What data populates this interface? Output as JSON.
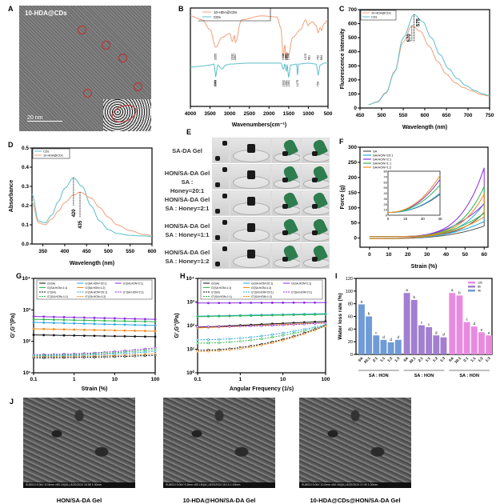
{
  "panels": {
    "A": {
      "label": "A",
      "title": "10-HDA@CDs",
      "scale_bar": "20 nm"
    },
    "E": {
      "label": "E",
      "rows": [
        {
          "line1": "SA-DA Gel",
          "line2": ""
        },
        {
          "line1": "HON/SA-DA Gel",
          "line2": "SA : Honey=20:1"
        },
        {
          "line1": "HON/SA-DA Gel",
          "line2": "SA : Honey=2:1"
        },
        {
          "line1": "HON/SA-DA Gel",
          "line2": "SA : Honey=1:1"
        },
        {
          "line1": "HON/SA-DA Gel",
          "line2": "SA : Honey=1:2"
        }
      ]
    },
    "J": {
      "label": "J",
      "images": [
        {
          "caption": "HON/SA-DA Gel",
          "info": "SU8010 5.0kV 10.6mm x50 LM(UL) 8/20/2024 15:58   1.00mm"
        },
        {
          "caption": "10-HDA@HON/SA-DA Gel",
          "info": "SU8010 5.0kV 9.2mm x50 LM(UL) 8/20/2024 16:10   1.00mm"
        },
        {
          "caption": "10-HDA@CDs@HON/SA-DA Gel",
          "info": "SU8010 5.0kV 10.0mm x50 LM(UL) 8/20/2024 17:40   1.00mm"
        }
      ]
    }
  },
  "colors": {
    "cds": "#5bc0c8",
    "hda": "#f0a07a",
    "sa": "#555555",
    "s20": "#2aa7e0",
    "s21": "#8a2be2",
    "s11": "#2db84d",
    "s12": "#f08a1c",
    "b4": "#6f9bd6",
    "b8": "#a27fd0",
    "b12": "#e88be0"
  },
  "chart_data": [
    {
      "id": "B",
      "type": "line",
      "title": "",
      "xlabel": "Wavenumbers(cm⁻¹)",
      "ylabel": "",
      "xlim": [
        4000,
        500
      ],
      "xticks": [
        4000,
        3500,
        3000,
        2500,
        2000,
        1500,
        1000,
        500
      ],
      "legend": [
        "10-HDA@CDs",
        "CDs"
      ],
      "legend_position": "top-left",
      "peaks_hda": [
        "3355",
        "2932",
        "2857",
        "1638",
        "1567",
        "1552",
        "1504",
        "1070",
        "981",
        "752",
        "664"
      ],
      "peaks_cds": [
        "3365",
        "3363",
        "1632",
        "1561",
        "1501",
        "1275",
        "750"
      ],
      "series": [
        {
          "name": "10-HDA@CDs",
          "x": [
            4000,
            3700,
            3500,
            3355,
            3200,
            3000,
            2932,
            2880,
            2857,
            2700,
            2200,
            1800,
            1700,
            1638,
            1600,
            1567,
            1552,
            1504,
            1400,
            1200,
            1070,
            1000,
            981,
            900,
            800,
            752,
            700,
            664,
            600,
            500
          ],
          "y": [
            0.92,
            0.88,
            0.78,
            0.6,
            0.7,
            0.74,
            0.66,
            0.72,
            0.65,
            0.88,
            0.92,
            0.91,
            0.8,
            0.5,
            0.62,
            0.48,
            0.55,
            0.52,
            0.7,
            0.78,
            0.88,
            0.82,
            0.84,
            0.86,
            0.82,
            0.75,
            0.8,
            0.77,
            0.84,
            0.88
          ]
        },
        {
          "name": "CDs",
          "x": [
            4000,
            3700,
            3500,
            3400,
            3365,
            3363,
            3300,
            3200,
            3100,
            3000,
            2500,
            2000,
            1700,
            1632,
            1600,
            1561,
            1540,
            1501,
            1450,
            1300,
            1275,
            1250,
            1000,
            800,
            750,
            700,
            600,
            500
          ],
          "y": [
            0.4,
            0.41,
            0.42,
            0.43,
            0.34,
            0.3,
            0.42,
            0.38,
            0.42,
            0.43,
            0.44,
            0.44,
            0.44,
            0.38,
            0.43,
            0.36,
            0.42,
            0.3,
            0.42,
            0.43,
            0.32,
            0.43,
            0.44,
            0.43,
            0.32,
            0.42,
            0.44,
            0.44
          ]
        }
      ]
    },
    {
      "id": "C",
      "type": "line",
      "title": "",
      "xlabel": "Wavelength (nm)",
      "ylabel": "Fluorescence intensity",
      "xlim": [
        450,
        750
      ],
      "ylim": [
        0,
        700
      ],
      "xticks": [
        450,
        500,
        550,
        600,
        650,
        700,
        750
      ],
      "yticks": [
        0,
        100,
        200,
        300,
        400,
        500,
        600,
        700
      ],
      "legend": [
        "10-HDA@CDs",
        "CDs"
      ],
      "legend_position": "top-left",
      "annotations": [
        "570",
        "575"
      ],
      "series": [
        {
          "name": "10-HDA@CDs",
          "x": [
            470,
            490,
            510,
            530,
            550,
            570,
            590,
            610,
            630,
            650,
            670,
            690,
            710,
            730,
            750
          ],
          "y": [
            25,
            45,
            110,
            260,
            470,
            585,
            545,
            440,
            330,
            240,
            180,
            145,
            120,
            95,
            85
          ]
        },
        {
          "name": "CDs",
          "x": [
            470,
            490,
            510,
            530,
            550,
            575,
            595,
            615,
            635,
            655,
            675,
            695,
            715,
            735,
            750
          ],
          "y": [
            25,
            42,
            105,
            255,
            500,
            665,
            615,
            500,
            380,
            280,
            210,
            160,
            125,
            100,
            88
          ]
        }
      ]
    },
    {
      "id": "D",
      "type": "line",
      "title": "",
      "xlabel": "Wavelength (nm)",
      "ylabel": "Absorbance",
      "xlim": [
        325,
        600
      ],
      "ylim": [
        0,
        0.5
      ],
      "xticks": [
        350,
        400,
        450,
        500,
        550,
        600
      ],
      "yticks": [
        0.0,
        0.1,
        0.2,
        0.3,
        0.4,
        0.5
      ],
      "legend": [
        "CDs",
        "10-HDA@CDs"
      ],
      "legend_position": "top-left",
      "annotations": [
        "420",
        "435"
      ],
      "series": [
        {
          "name": "CDs",
          "x": [
            325,
            340,
            355,
            370,
            385,
            400,
            420,
            440,
            460,
            480,
            500,
            520,
            550,
            580,
            600
          ],
          "y": [
            0.26,
            0.12,
            0.11,
            0.15,
            0.22,
            0.29,
            0.345,
            0.3,
            0.2,
            0.12,
            0.075,
            0.055,
            0.045,
            0.042,
            0.04
          ]
        },
        {
          "name": "10-HDA@CDs",
          "x": [
            325,
            340,
            355,
            370,
            385,
            400,
            420,
            435,
            460,
            480,
            500,
            520,
            550,
            580,
            600
          ],
          "y": [
            0.22,
            0.11,
            0.1,
            0.13,
            0.17,
            0.215,
            0.255,
            0.27,
            0.24,
            0.19,
            0.14,
            0.1,
            0.07,
            0.05,
            0.045
          ]
        }
      ]
    },
    {
      "id": "F",
      "type": "line",
      "title": "",
      "xlabel": "Strain (%)",
      "ylabel": "Force (g)",
      "xlim": [
        -5,
        62
      ],
      "ylim": [
        -30,
        300
      ],
      "xticks": [
        0,
        10,
        20,
        30,
        40,
        50,
        60
      ],
      "yticks": [
        0,
        50,
        100,
        150,
        200,
        250,
        300
      ],
      "legend": [
        "SA",
        "SA/HON=20:1",
        "SA/HON=2:1",
        "SA/HON=1:1",
        "SA/HON=1:2"
      ],
      "legend_position": "top-left",
      "inset": {
        "xlim": [
          0,
          45
        ],
        "ylim": [
          0,
          80
        ],
        "xticks": [
          0,
          15,
          30,
          45
        ],
        "yticks": [
          0,
          10,
          20,
          30,
          40,
          50,
          60,
          70,
          80
        ]
      },
      "series": [
        {
          "name": "SA",
          "peak": 85
        },
        {
          "name": "SA/HON=20:1",
          "peak": 115
        },
        {
          "name": "SA/HON=2:1",
          "peak": 232
        },
        {
          "name": "SA/HON=1:1",
          "peak": 170
        },
        {
          "name": "SA/HON=1:2",
          "peak": 145
        }
      ]
    },
    {
      "id": "G",
      "type": "line",
      "title": "",
      "xlabel": "Strain (%)",
      "ylabel": "G',G''(Pa)",
      "xscale": "log",
      "yscale": "log",
      "xlim": [
        0.1,
        100
      ],
      "ylim": [
        10,
        10000
      ],
      "xticks": [
        "0.1",
        "1",
        "10",
        "100"
      ],
      "yticks": [
        "10¹",
        "10²",
        "10³",
        "10⁴"
      ],
      "legend": [
        "G'(SA)",
        "G'(SA:HON=20:1)",
        "G'(SA:HON=2:1)",
        "G'(SA:HON=1:1)",
        "G'(SA:HON=1:2)",
        "G''(SA)",
        "G''(SA:HON=20:1)",
        "G''(SA:HON=2:1)",
        "G''(SA:HON=1:1)",
        "G''(SA:HON=1:2)"
      ],
      "legend_position": "top",
      "series": [
        {
          "name": "G'(SA:HON=2:1)",
          "start": 620,
          "end": 500
        },
        {
          "name": "G'(SA:HON=1:1)",
          "start": 500,
          "end": 420
        },
        {
          "name": "G'(SA:HON=20:1)",
          "start": 400,
          "end": 320
        },
        {
          "name": "G'(SA:HON=1:2)",
          "start": 250,
          "end": 210
        },
        {
          "name": "G'(SA)",
          "start": 160,
          "end": 140
        },
        {
          "name": "G''(SA:HON=2:1)",
          "start": 38,
          "end": 62
        },
        {
          "name": "G''(SA:HON=1:1)",
          "start": 36,
          "end": 55
        },
        {
          "name": "G''(SA:HON=20:1)",
          "start": 34,
          "end": 48
        },
        {
          "name": "G''(SA:HON=1:2)",
          "start": 32,
          "end": 40
        },
        {
          "name": "G''(SA)",
          "start": 30,
          "end": 36
        }
      ]
    },
    {
      "id": "H",
      "type": "line",
      "title": "",
      "xlabel": "Angular Frequency (1/s)",
      "ylabel": "G',G''(Pa)",
      "xscale": "log",
      "yscale": "log",
      "xlim": [
        0.1,
        100
      ],
      "ylim": [
        1,
        10000
      ],
      "xticks": [
        "0.1",
        "1",
        "10",
        "100"
      ],
      "yticks": [
        "10⁰",
        "10¹",
        "10²",
        "10³",
        "10⁴"
      ],
      "legend": [
        "G'(SA)",
        "G'(SA:HON=20:1)",
        "G'(SA:HON=2:1)",
        "G'(SA:HON=1:1)",
        "G'(SA:HON=1:2)",
        "G''(SA)",
        "G''(SA:HON=20:1)",
        "G''(SA:HON=2:1)",
        "G''(SA:HON=1:1)",
        "G''(SA:HON=1:2)"
      ],
      "legend_position": "top",
      "series": [
        {
          "name": "G'(SA:HON=2:1)",
          "start": 900,
          "end": 950
        },
        {
          "name": "G'(SA:HON=20:1)",
          "start": 250,
          "end": 320
        },
        {
          "name": "G'(SA:HON=1:1)",
          "start": 240,
          "end": 300
        },
        {
          "name": "G'(SA)",
          "start": 85,
          "end": 150
        },
        {
          "name": "G'(SA:HON=1:2)",
          "start": 80,
          "end": 130
        },
        {
          "name": "G''(SA:HON=2:1)",
          "start": 90,
          "end": 130
        },
        {
          "name": "G''(SA:HON=20:1)",
          "start": 25,
          "end": 110
        },
        {
          "name": "G''(SA:HON=1:1)",
          "start": 18,
          "end": 100
        },
        {
          "name": "G''(SA)",
          "start": 9,
          "end": 100
        },
        {
          "name": "G''(SA:HON=1:2)",
          "start": 8,
          "end": 95
        }
      ]
    },
    {
      "id": "I",
      "type": "bar",
      "title": "",
      "xlabel": "SA : HON",
      "ylabel": "Water loss rate (%)",
      "ylim": [
        0,
        120
      ],
      "yticks": [
        0,
        20,
        40,
        60,
        80,
        100,
        120
      ],
      "categories": [
        "SA",
        "20:1",
        "2:1",
        "1:1",
        "1:2",
        "1:3"
      ],
      "group_label": "SA : HON",
      "legend": [
        "12h",
        "8h",
        "4h"
      ],
      "legend_position": "top-right",
      "series": [
        {
          "name": "4h",
          "values": [
            79,
            60,
            30,
            23,
            19,
            23
          ],
          "letters": [
            "a",
            "b",
            "c",
            "d",
            "d",
            "d"
          ]
        },
        {
          "name": "8h",
          "values": [
            97,
            86,
            46,
            43,
            30,
            27
          ],
          "letters": [
            "a",
            "b",
            "c",
            "c",
            "d",
            "d"
          ]
        },
        {
          "name": "12h",
          "values": [
            97,
            93,
            51,
            44,
            35,
            30
          ],
          "letters": [
            "a",
            "b",
            "c",
            "d",
            "e",
            "e"
          ]
        }
      ]
    }
  ]
}
